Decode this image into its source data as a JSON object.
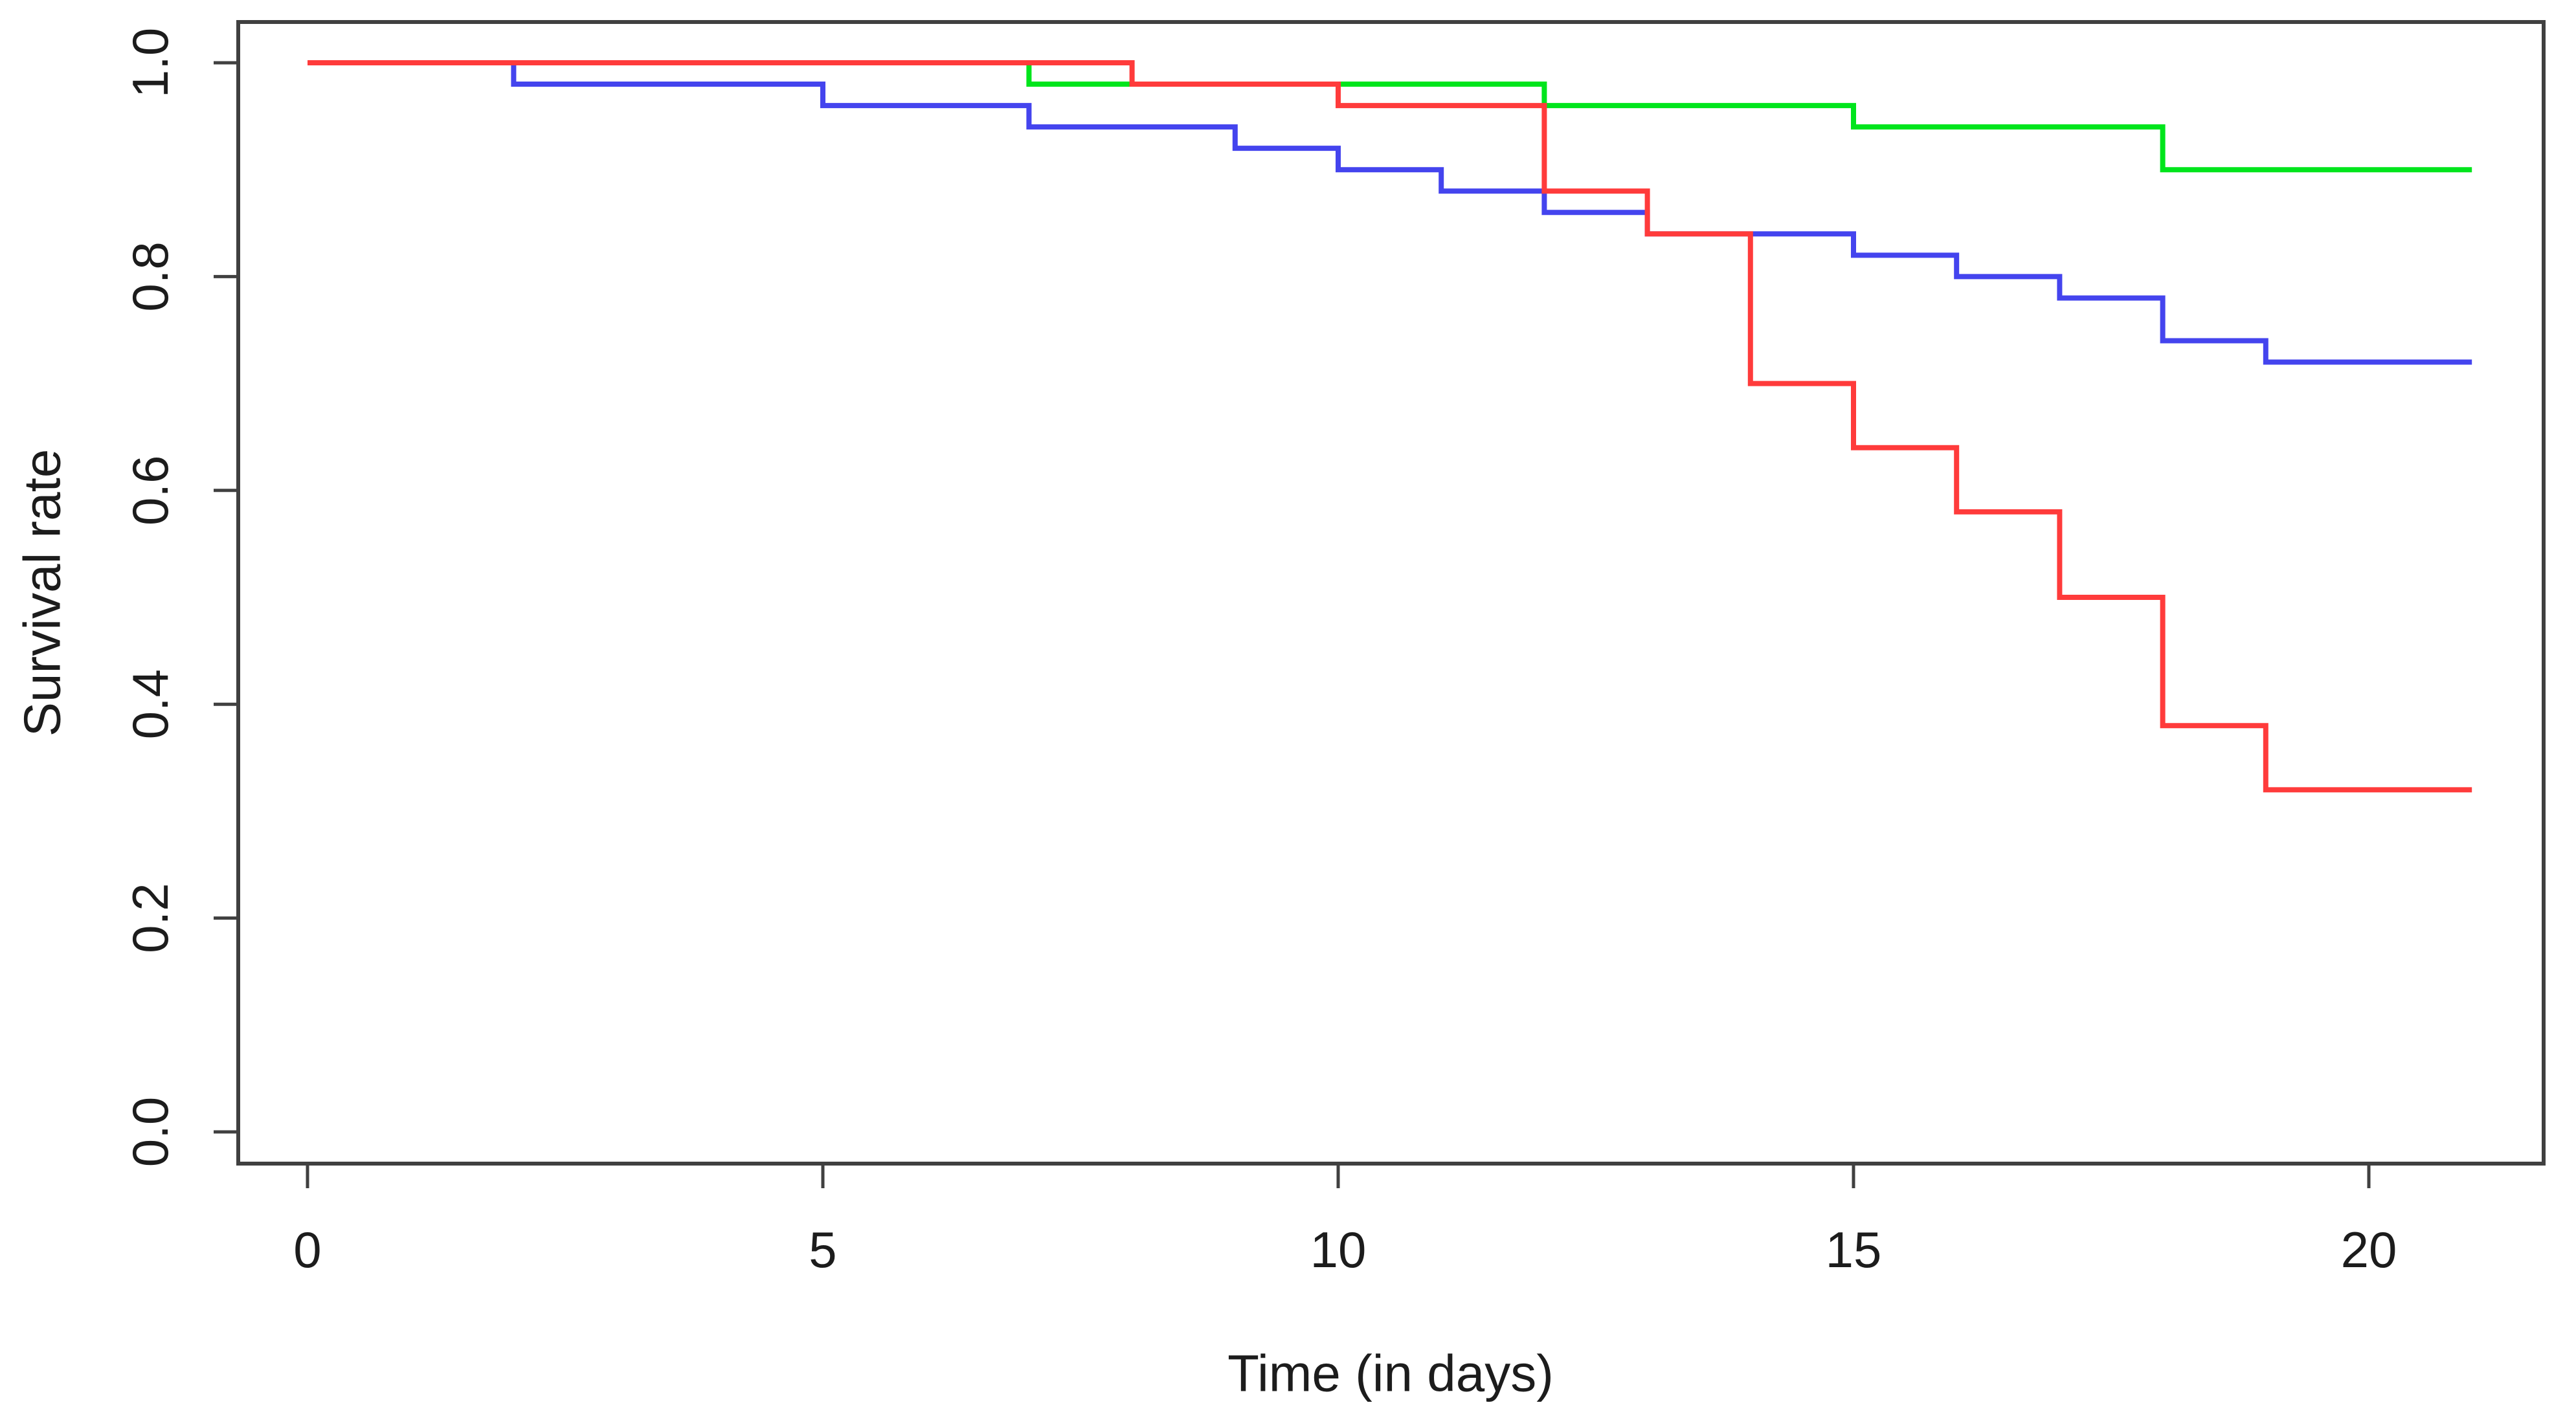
{
  "chart_data": {
    "type": "line",
    "subtype": "step-survival-curves",
    "title": "",
    "xlabel": "Time (in days)",
    "ylabel": "Survival rate",
    "xlim": [
      0,
      21
    ],
    "ylim": [
      0.0,
      1.0
    ],
    "xticks": [
      0,
      5,
      10,
      15,
      20
    ],
    "yticks": [
      0.0,
      0.2,
      0.4,
      0.6,
      0.8,
      1.0
    ],
    "grid": false,
    "legend": "none",
    "frame_color": "#404040",
    "tick_label_color": "#1c1c1c",
    "series": [
      {
        "name": "green",
        "color": "#00e51c",
        "points": [
          [
            0,
            1.0
          ],
          [
            7,
            0.98
          ],
          [
            12,
            0.96
          ],
          [
            15,
            0.94
          ],
          [
            18,
            0.9
          ],
          [
            21,
            0.9
          ]
        ]
      },
      {
        "name": "blue",
        "color": "#4444ee",
        "points": [
          [
            0,
            1.0
          ],
          [
            2,
            0.98
          ],
          [
            5,
            0.96
          ],
          [
            7,
            0.94
          ],
          [
            9,
            0.92
          ],
          [
            10,
            0.9
          ],
          [
            11,
            0.88
          ],
          [
            12,
            0.86
          ],
          [
            13,
            0.84
          ],
          [
            15,
            0.82
          ],
          [
            16,
            0.8
          ],
          [
            17,
            0.78
          ],
          [
            18,
            0.74
          ],
          [
            19,
            0.72
          ],
          [
            21,
            0.72
          ]
        ]
      },
      {
        "name": "red",
        "color": "#ff3b3b",
        "points": [
          [
            0,
            1.0
          ],
          [
            8,
            0.98
          ],
          [
            10,
            0.96
          ],
          [
            12,
            0.88
          ],
          [
            13,
            0.84
          ],
          [
            14,
            0.7
          ],
          [
            15,
            0.64
          ],
          [
            16,
            0.58
          ],
          [
            17,
            0.5
          ],
          [
            18,
            0.38
          ],
          [
            19,
            0.32
          ],
          [
            21,
            0.32
          ]
        ]
      }
    ]
  }
}
